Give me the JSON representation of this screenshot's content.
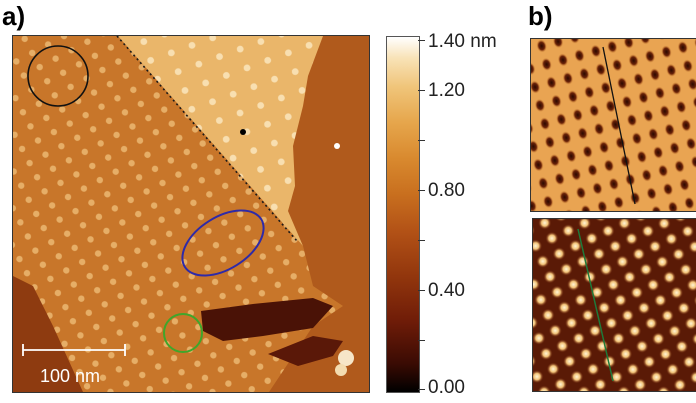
{
  "figure": {
    "panel_a_label": "a)",
    "panel_b_label": "b)",
    "scale_bar_label": "100 nm",
    "colorbar": {
      "unit": "nm",
      "ticks": [
        "1.40 nm",
        "1.20",
        "0.80",
        "0.40",
        "0.00"
      ],
      "colors": [
        "#000000",
        "#6f1c08",
        "#b25116",
        "#d98a2f",
        "#f0c57a",
        "#ffffff"
      ]
    },
    "annotation_colors": {
      "black_circle": "#111111",
      "blue_ellipse": "#2e2aa8",
      "green_circle": "#3fa62b",
      "dotted_line": "#1a1a1a",
      "inset_top_line": "#111111",
      "inset_bottom_line": "#1f7a3a"
    }
  }
}
